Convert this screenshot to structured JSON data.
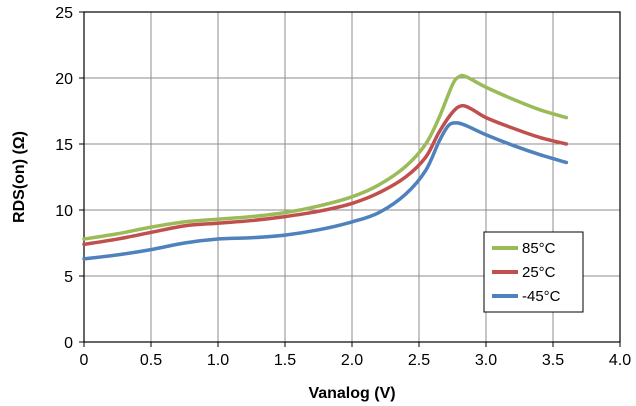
{
  "chart_data": {
    "type": "line",
    "title": "",
    "xlabel": "Vanalog (V)",
    "ylabel": "RDS(on) (Ω)",
    "xlim": [
      0,
      4.0
    ],
    "ylim": [
      0,
      25
    ],
    "x_ticks": [
      "0",
      "0.5",
      "1.0",
      "1.5",
      "2.0",
      "2.5",
      "3.0",
      "3.5",
      "4.0"
    ],
    "x_tick_values": [
      0,
      0.5,
      1.0,
      1.5,
      2.0,
      2.5,
      3.0,
      3.5,
      4.0
    ],
    "y_ticks": [
      "0",
      "5",
      "10",
      "15",
      "20",
      "25"
    ],
    "y_tick_values": [
      0,
      5,
      10,
      15,
      20,
      25
    ],
    "grid": true,
    "legend_position": "bottom-right",
    "series": [
      {
        "name": "85°C",
        "color": "#9BBB59",
        "points": [
          [
            0,
            7.8
          ],
          [
            0.25,
            8.2
          ],
          [
            0.5,
            8.7
          ],
          [
            0.75,
            9.1
          ],
          [
            1.0,
            9.3
          ],
          [
            1.25,
            9.5
          ],
          [
            1.5,
            9.8
          ],
          [
            1.75,
            10.3
          ],
          [
            2.0,
            11.0
          ],
          [
            2.2,
            11.9
          ],
          [
            2.4,
            13.3
          ],
          [
            2.55,
            15.0
          ],
          [
            2.65,
            17.0
          ],
          [
            2.75,
            19.5
          ],
          [
            2.8,
            20.1
          ],
          [
            2.85,
            20.1
          ],
          [
            3.0,
            19.3
          ],
          [
            3.2,
            18.4
          ],
          [
            3.4,
            17.6
          ],
          [
            3.6,
            17.0
          ]
        ]
      },
      {
        "name": "25°C",
        "color": "#C0504D",
        "points": [
          [
            0,
            7.4
          ],
          [
            0.25,
            7.8
          ],
          [
            0.5,
            8.3
          ],
          [
            0.75,
            8.8
          ],
          [
            1.0,
            9.0
          ],
          [
            1.25,
            9.2
          ],
          [
            1.5,
            9.5
          ],
          [
            1.75,
            9.9
          ],
          [
            2.0,
            10.5
          ],
          [
            2.2,
            11.3
          ],
          [
            2.4,
            12.5
          ],
          [
            2.55,
            14.0
          ],
          [
            2.65,
            15.9
          ],
          [
            2.75,
            17.4
          ],
          [
            2.82,
            17.9
          ],
          [
            2.9,
            17.6
          ],
          [
            3.0,
            17.0
          ],
          [
            3.2,
            16.2
          ],
          [
            3.4,
            15.5
          ],
          [
            3.6,
            15.0
          ]
        ]
      },
      {
        "name": "-45°C",
        "color": "#4F81BD",
        "points": [
          [
            0,
            6.3
          ],
          [
            0.25,
            6.6
          ],
          [
            0.5,
            7.0
          ],
          [
            0.75,
            7.5
          ],
          [
            1.0,
            7.8
          ],
          [
            1.25,
            7.9
          ],
          [
            1.5,
            8.1
          ],
          [
            1.75,
            8.5
          ],
          [
            2.0,
            9.1
          ],
          [
            2.2,
            9.8
          ],
          [
            2.4,
            11.2
          ],
          [
            2.55,
            13.0
          ],
          [
            2.65,
            15.2
          ],
          [
            2.72,
            16.4
          ],
          [
            2.78,
            16.6
          ],
          [
            2.85,
            16.4
          ],
          [
            3.0,
            15.7
          ],
          [
            3.2,
            14.9
          ],
          [
            3.4,
            14.2
          ],
          [
            3.6,
            13.6
          ]
        ]
      }
    ]
  }
}
